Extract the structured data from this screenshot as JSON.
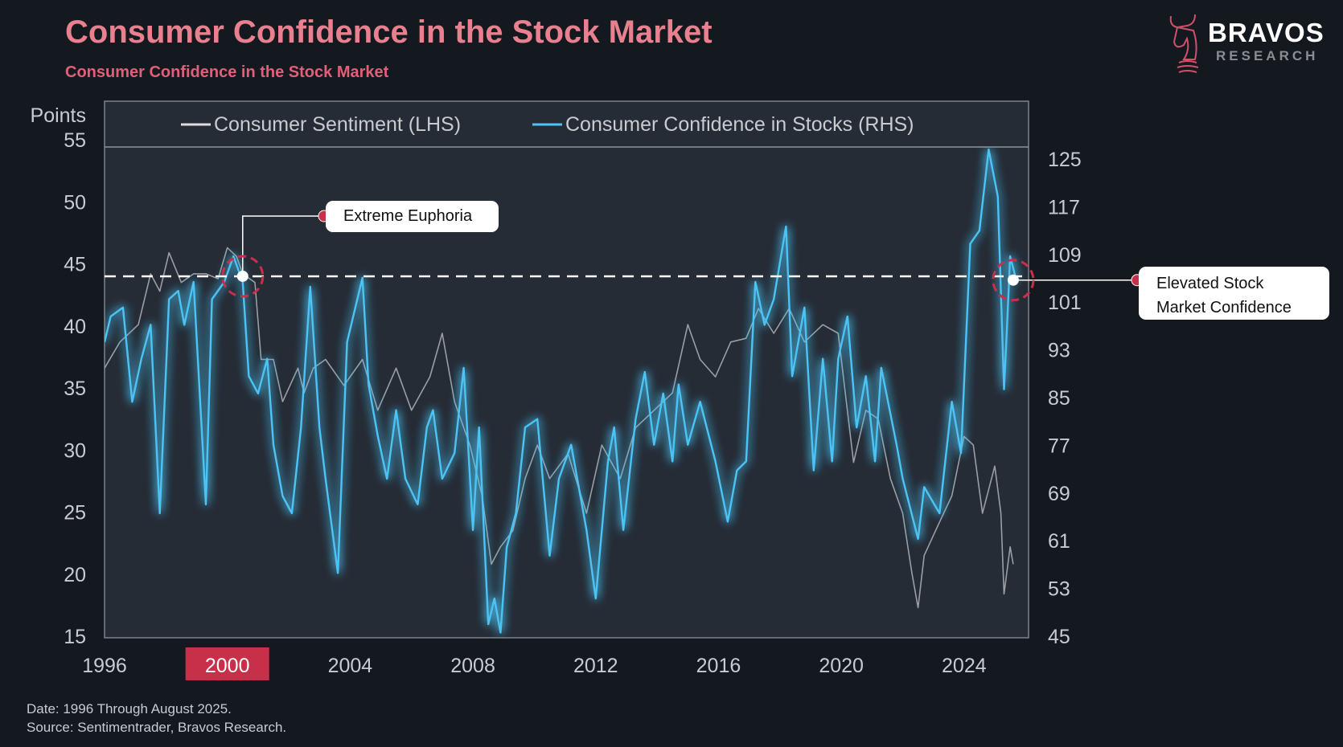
{
  "header": {
    "title": "Consumer Confidence in the Stock Market",
    "subtitle": "Consumer Confidence in the Stock Market"
  },
  "logo": {
    "name": "BRAVOS",
    "sub": "RESEARCH",
    "icon": "bull-knight-icon",
    "color": "#d0506a"
  },
  "footer": {
    "date": "Date: 1996 Through August 2025.",
    "source": "Source: Sentimentrader, Bravos Research."
  },
  "annotations": {
    "euphoria": "Extreme Euphoria",
    "elevated_line1": "Elevated Stock",
    "elevated_line2": "Market Confidence"
  },
  "chart_data": {
    "type": "line",
    "title": "",
    "ylabel_left": "Points",
    "xlim": [
      1996,
      2026.1
    ],
    "ylim_left": [
      15,
      55
    ],
    "ylim_right": [
      45,
      125
    ],
    "x_ticks": [
      "1996",
      "2000",
      "2004",
      "2008",
      "2012",
      "2016",
      "2020",
      "2024"
    ],
    "highlighted_x_tick": "2000",
    "y_ticks_left": [
      "55",
      "50",
      "45",
      "40",
      "35",
      "30",
      "25",
      "20",
      "15"
    ],
    "y_ticks_right": [
      "125",
      "117",
      "109",
      "101",
      "93",
      "85",
      "77",
      "69",
      "61",
      "53",
      "45"
    ],
    "reference_line_left": 44,
    "legend": "top",
    "colors": {
      "sentiment": "#d8d8d8",
      "confidence": "#4cc4f5",
      "highlight": "#c8304a"
    },
    "annotation_points": [
      {
        "x": 2000.5,
        "y_left": 44,
        "label": "Extreme Euphoria"
      },
      {
        "x": 2025.6,
        "y_right": 104.7,
        "label": "Elevated Stock Market Confidence"
      }
    ],
    "series": [
      {
        "name": "Consumer Sentiment (LHS)",
        "axis": "left",
        "points": [
          [
            1996.0,
            36.6
          ],
          [
            1996.5,
            38.7
          ],
          [
            1997.1,
            40.1
          ],
          [
            1997.5,
            44.2
          ],
          [
            1997.8,
            42.8
          ],
          [
            1998.1,
            45.9
          ],
          [
            1998.5,
            43.5
          ],
          [
            1998.9,
            44.2
          ],
          [
            1999.3,
            44.2
          ],
          [
            1999.7,
            43.8
          ],
          [
            2000.0,
            46.3
          ],
          [
            2000.3,
            45.6
          ],
          [
            2000.5,
            44.2
          ],
          [
            2000.9,
            43.5
          ],
          [
            2001.1,
            37.3
          ],
          [
            2001.5,
            37.3
          ],
          [
            2001.8,
            33.9
          ],
          [
            2002.3,
            36.6
          ],
          [
            2002.5,
            34.6
          ],
          [
            2002.8,
            36.6
          ],
          [
            2003.2,
            37.3
          ],
          [
            2003.8,
            35.2
          ],
          [
            2004.4,
            37.3
          ],
          [
            2004.9,
            33.2
          ],
          [
            2005.5,
            36.6
          ],
          [
            2006.0,
            33.2
          ],
          [
            2006.6,
            35.9
          ],
          [
            2007.0,
            39.4
          ],
          [
            2007.4,
            33.9
          ],
          [
            2007.9,
            30.4
          ],
          [
            2008.3,
            26.3
          ],
          [
            2008.6,
            20.8
          ],
          [
            2008.9,
            22.2
          ],
          [
            2009.3,
            23.5
          ],
          [
            2009.7,
            27.7
          ],
          [
            2010.1,
            30.4
          ],
          [
            2010.5,
            27.7
          ],
          [
            2011.1,
            29.7
          ],
          [
            2011.7,
            24.9
          ],
          [
            2012.2,
            30.4
          ],
          [
            2012.8,
            27.7
          ],
          [
            2013.3,
            31.8
          ],
          [
            2013.9,
            33.2
          ],
          [
            2014.5,
            34.6
          ],
          [
            2015.0,
            40.1
          ],
          [
            2015.4,
            37.3
          ],
          [
            2015.9,
            35.9
          ],
          [
            2016.4,
            38.7
          ],
          [
            2016.9,
            39.0
          ],
          [
            2017.3,
            41.4
          ],
          [
            2017.8,
            39.4
          ],
          [
            2018.3,
            41.4
          ],
          [
            2018.8,
            38.7
          ],
          [
            2019.4,
            40.1
          ],
          [
            2019.9,
            39.4
          ],
          [
            2020.4,
            29.0
          ],
          [
            2020.8,
            33.2
          ],
          [
            2021.2,
            32.5
          ],
          [
            2021.6,
            27.7
          ],
          [
            2022.0,
            24.9
          ],
          [
            2022.3,
            20.1
          ],
          [
            2022.5,
            17.3
          ],
          [
            2022.7,
            21.5
          ],
          [
            2023.2,
            24.2
          ],
          [
            2023.6,
            26.3
          ],
          [
            2024.0,
            31.1
          ],
          [
            2024.3,
            30.4
          ],
          [
            2024.6,
            24.9
          ],
          [
            2025.0,
            28.7
          ],
          [
            2025.2,
            24.9
          ],
          [
            2025.3,
            18.4
          ],
          [
            2025.5,
            22.2
          ],
          [
            2025.6,
            20.8
          ]
        ]
      },
      {
        "name": "Consumer Confidence in Stocks (RHS)",
        "axis": "right",
        "points": [
          [
            1996.0,
            94.3
          ],
          [
            1996.2,
            98.6
          ],
          [
            1996.6,
            100.1
          ],
          [
            1996.9,
            84.3
          ],
          [
            1997.2,
            91.5
          ],
          [
            1997.5,
            97.2
          ],
          [
            1997.8,
            65.6
          ],
          [
            1998.1,
            101.5
          ],
          [
            1998.4,
            102.9
          ],
          [
            1998.6,
            97.2
          ],
          [
            1998.9,
            104.4
          ],
          [
            1999.3,
            67.1
          ],
          [
            1999.5,
            101.5
          ],
          [
            1999.9,
            104.4
          ],
          [
            2000.2,
            108.7
          ],
          [
            2000.5,
            104.4
          ],
          [
            2000.7,
            88.6
          ],
          [
            2001.0,
            85.7
          ],
          [
            2001.3,
            91.5
          ],
          [
            2001.5,
            77.1
          ],
          [
            2001.8,
            68.5
          ],
          [
            2002.1,
            65.6
          ],
          [
            2002.4,
            80.0
          ],
          [
            2002.7,
            103.6
          ],
          [
            2003.0,
            80.0
          ],
          [
            2003.2,
            71.4
          ],
          [
            2003.6,
            55.6
          ],
          [
            2003.9,
            94.3
          ],
          [
            2004.4,
            105.1
          ],
          [
            2004.6,
            87.2
          ],
          [
            2004.9,
            78.6
          ],
          [
            2005.2,
            71.4
          ],
          [
            2005.5,
            82.9
          ],
          [
            2005.8,
            71.4
          ],
          [
            2006.2,
            67.1
          ],
          [
            2006.5,
            80.0
          ],
          [
            2006.7,
            82.9
          ],
          [
            2007.0,
            71.4
          ],
          [
            2007.4,
            75.7
          ],
          [
            2007.7,
            90.0
          ],
          [
            2008.0,
            62.8
          ],
          [
            2008.2,
            80.0
          ],
          [
            2008.5,
            47.0
          ],
          [
            2008.7,
            51.3
          ],
          [
            2008.9,
            45.6
          ],
          [
            2009.1,
            59.9
          ],
          [
            2009.4,
            65.6
          ],
          [
            2009.7,
            80.0
          ],
          [
            2010.1,
            81.4
          ],
          [
            2010.5,
            58.5
          ],
          [
            2010.8,
            71.4
          ],
          [
            2011.2,
            77.1
          ],
          [
            2011.7,
            62.8
          ],
          [
            2012.0,
            51.3
          ],
          [
            2012.4,
            74.3
          ],
          [
            2012.6,
            80.0
          ],
          [
            2012.9,
            62.8
          ],
          [
            2013.3,
            81.4
          ],
          [
            2013.6,
            89.3
          ],
          [
            2013.9,
            77.1
          ],
          [
            2014.2,
            85.7
          ],
          [
            2014.5,
            74.3
          ],
          [
            2014.7,
            87.2
          ],
          [
            2015.0,
            77.1
          ],
          [
            2015.4,
            84.3
          ],
          [
            2015.9,
            74.3
          ],
          [
            2016.3,
            64.2
          ],
          [
            2016.6,
            72.8
          ],
          [
            2016.9,
            74.3
          ],
          [
            2017.2,
            104.4
          ],
          [
            2017.5,
            97.2
          ],
          [
            2017.8,
            101.5
          ],
          [
            2018.2,
            113.7
          ],
          [
            2018.4,
            88.6
          ],
          [
            2018.8,
            100.1
          ],
          [
            2019.1,
            72.8
          ],
          [
            2019.4,
            91.5
          ],
          [
            2019.7,
            74.3
          ],
          [
            2019.9,
            91.5
          ],
          [
            2020.2,
            98.6
          ],
          [
            2020.5,
            80.0
          ],
          [
            2020.8,
            88.6
          ],
          [
            2021.1,
            74.3
          ],
          [
            2021.3,
            90.0
          ],
          [
            2021.8,
            77.1
          ],
          [
            2022.0,
            71.4
          ],
          [
            2022.5,
            61.3
          ],
          [
            2022.7,
            70.0
          ],
          [
            2023.2,
            65.6
          ],
          [
            2023.6,
            84.3
          ],
          [
            2023.9,
            75.7
          ],
          [
            2024.2,
            110.8
          ],
          [
            2024.5,
            113.0
          ],
          [
            2024.8,
            126.6
          ],
          [
            2025.1,
            118.7
          ],
          [
            2025.3,
            86.4
          ],
          [
            2025.4,
            97.2
          ],
          [
            2025.5,
            108.7
          ],
          [
            2025.7,
            104.7
          ]
        ]
      }
    ]
  }
}
